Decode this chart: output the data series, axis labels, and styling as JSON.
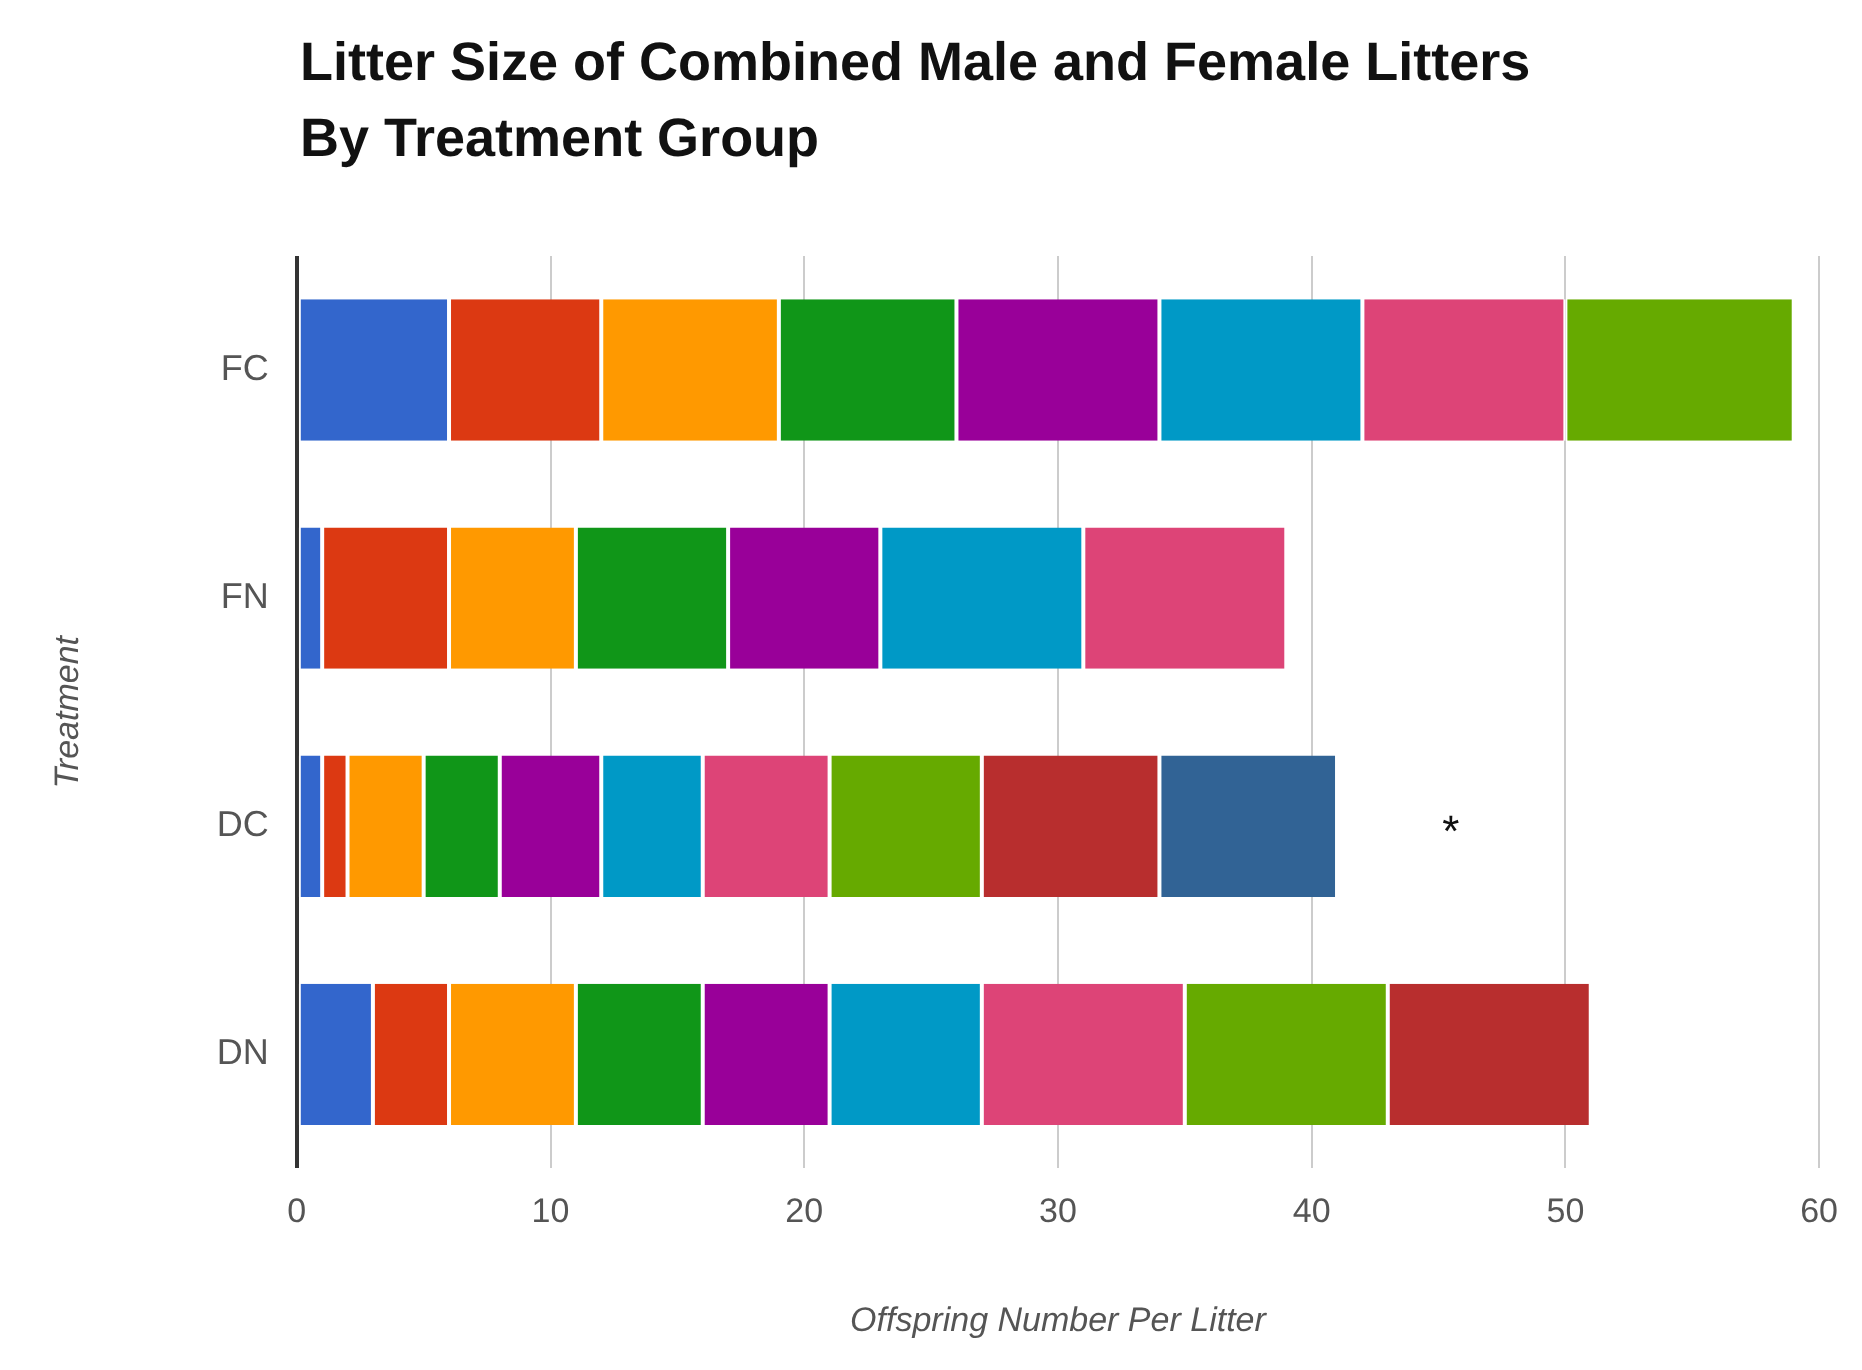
{
  "chart_data": {
    "type": "bar",
    "orientation": "horizontal",
    "stacked": true,
    "title": "Litter Size of Combined Male and Female Litters\nBy Treatment Group",
    "xlabel": "Offspring Number Per Litter",
    "ylabel": "Treatment",
    "categories": [
      "FC",
      "FN",
      "DC",
      "DN"
    ],
    "series": [
      {
        "color": "#3366cc",
        "values": [
          6,
          1,
          1,
          3
        ]
      },
      {
        "color": "#dc3912",
        "values": [
          6,
          5,
          1,
          3
        ]
      },
      {
        "color": "#ff9900",
        "values": [
          7,
          5,
          3,
          5
        ]
      },
      {
        "color": "#109618",
        "values": [
          7,
          6,
          3,
          5
        ]
      },
      {
        "color": "#990099",
        "values": [
          8,
          6,
          4,
          5
        ]
      },
      {
        "color": "#0099c6",
        "values": [
          8,
          8,
          4,
          6
        ]
      },
      {
        "color": "#dd4477",
        "values": [
          8,
          8,
          5,
          8
        ]
      },
      {
        "color": "#66aa00",
        "values": [
          9,
          null,
          6,
          8
        ]
      },
      {
        "color": "#b82e2e",
        "values": [
          null,
          null,
          7,
          8
        ]
      },
      {
        "color": "#316395",
        "values": [
          null,
          null,
          7,
          null
        ]
      }
    ],
    "xlim": [
      0,
      60
    ],
    "xticks": [
      0,
      10,
      20,
      30,
      40,
      50,
      60
    ],
    "grid": "x",
    "legend": false,
    "annotations": [
      "*"
    ]
  }
}
